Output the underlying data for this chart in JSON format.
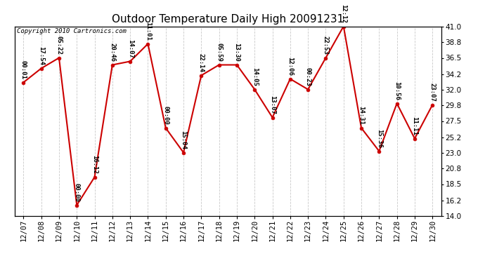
{
  "title": "Outdoor Temperature Daily High 20091231",
  "copyright": "Copyright 2010 Cartronics.com",
  "dates": [
    "12/07",
    "12/08",
    "12/09",
    "12/10",
    "12/11",
    "12/12",
    "12/13",
    "12/14",
    "12/15",
    "12/16",
    "12/17",
    "12/18",
    "12/19",
    "12/20",
    "12/21",
    "12/22",
    "12/23",
    "12/24",
    "12/25",
    "12/26",
    "12/27",
    "12/28",
    "12/29",
    "12/30"
  ],
  "values": [
    33.0,
    35.0,
    36.5,
    15.5,
    19.5,
    35.5,
    36.0,
    38.5,
    26.5,
    23.0,
    34.0,
    35.5,
    35.5,
    32.0,
    28.0,
    33.5,
    32.0,
    36.5,
    41.0,
    26.5,
    23.2,
    30.0,
    25.0,
    29.8
  ],
  "times": [
    "00:01",
    "17:54",
    "05:22",
    "00:00",
    "16:12",
    "20:46",
    "14:07",
    "11:01",
    "00:00",
    "15:04",
    "22:14",
    "05:59",
    "13:30",
    "14:05",
    "13:07",
    "12:06",
    "00:23",
    "22:53",
    "12:12",
    "14:31",
    "15:36",
    "10:56",
    "11:11",
    "23:07"
  ],
  "ylim_min": 14.0,
  "ylim_max": 41.0,
  "yticks": [
    14.0,
    16.2,
    18.5,
    20.8,
    23.0,
    25.2,
    27.5,
    29.8,
    32.0,
    34.2,
    36.5,
    38.8,
    41.0
  ],
  "line_color": "#cc0000",
  "marker_color": "#cc0000",
  "bg_color": "#ffffff",
  "grid_color": "#bbbbbb",
  "title_fontsize": 11,
  "copyright_fontsize": 6.5,
  "label_fontsize": 6.5
}
